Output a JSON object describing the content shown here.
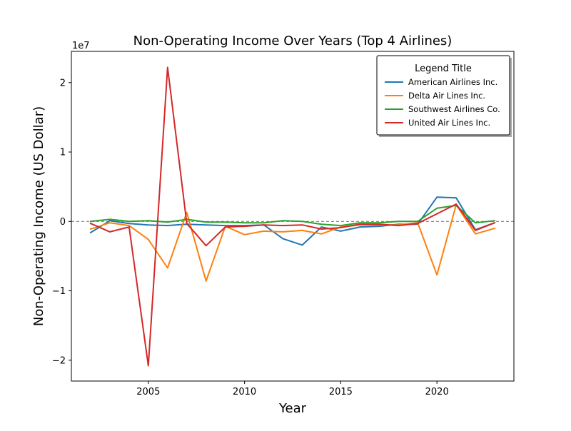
{
  "chart_data": {
    "type": "line",
    "title": "Non-Operating Income Over Years (Top 4 Airlines)",
    "xlabel": "Year",
    "ylabel": "Non-Operating Income (US Dollar)",
    "y_offset_label": "1e7",
    "xlim": [
      2001,
      2024
    ],
    "ylim": [
      -23000000,
      24500000
    ],
    "x_ticks": [
      2005,
      2010,
      2015,
      2020
    ],
    "y_ticks": [
      -20000000,
      -10000000,
      0,
      10000000,
      20000000
    ],
    "y_tick_labels": [
      "−2",
      "−1",
      "0",
      "1",
      "2"
    ],
    "grid": false,
    "reference_line": {
      "y": 0,
      "style": "dashed",
      "color": "#808080"
    },
    "legend": {
      "title": "Legend Title",
      "placement": "top-right"
    },
    "x": [
      2002,
      2003,
      2004,
      2005,
      2006,
      2007,
      2008,
      2009,
      2010,
      2011,
      2012,
      2013,
      2014,
      2015,
      2016,
      2017,
      2018,
      2019,
      2020,
      2021,
      2022,
      2023
    ],
    "series": [
      {
        "name": "American Airlines Inc.",
        "color": "#1f77b4",
        "values": [
          -1600000,
          100000,
          -300000,
          -500000,
          -600000,
          -400000,
          -500000,
          -600000,
          -600000,
          -500000,
          -2500000,
          -3400000,
          -800000,
          -1400000,
          -800000,
          -700000,
          -400000,
          -400000,
          3500000,
          3400000,
          -1200000,
          -200000
        ]
      },
      {
        "name": "Delta Air Lines Inc.",
        "color": "#ff7f0e",
        "values": [
          -1100000,
          -200000,
          -600000,
          -2600000,
          -6700000,
          1300000,
          -8600000,
          -700000,
          -1900000,
          -1400000,
          -1500000,
          -1300000,
          -1800000,
          -800000,
          -500000,
          -500000,
          -500000,
          -200000,
          -7700000,
          2400000,
          -1800000,
          -1000000
        ]
      },
      {
        "name": "Southwest Airlines Co.",
        "color": "#2ca02c",
        "values": [
          0,
          300000,
          0,
          100000,
          -100000,
          300000,
          -100000,
          -100000,
          -200000,
          -200000,
          100000,
          0,
          -400000,
          -600000,
          -200000,
          -200000,
          0,
          0,
          1900000,
          2300000,
          -200000,
          100000
        ]
      },
      {
        "name": "United Air Lines Inc.",
        "color": "#d62728",
        "values": [
          -300000,
          -1500000,
          -800000,
          -20800000,
          22200000,
          -300000,
          -3500000,
          -800000,
          -700000,
          -500000,
          -600000,
          -500000,
          -1100000,
          -900000,
          -400000,
          -400000,
          -600000,
          -300000,
          1100000,
          2500000,
          -1300000,
          -200000
        ]
      }
    ]
  }
}
